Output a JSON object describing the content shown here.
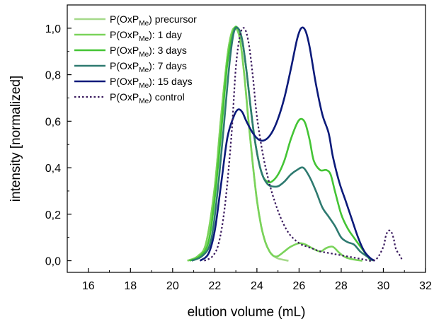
{
  "chart_data": {
    "type": "line",
    "xlabel": "elution volume (mL)",
    "ylabel": "intensity  [normalized]",
    "xlim": [
      15,
      32
    ],
    "ylim": [
      -0.05,
      1.1
    ],
    "x_ticks": [
      16,
      18,
      20,
      22,
      24,
      26,
      28,
      30,
      32
    ],
    "x_tick_labels": [
      "16",
      "18",
      "20",
      "22",
      "24",
      "26",
      "28",
      "30",
      "32"
    ],
    "y_ticks": [
      0.0,
      0.2,
      0.4,
      0.6,
      0.8,
      1.0
    ],
    "y_tick_labels": [
      "0,0",
      "0,2",
      "0,4",
      "0,6",
      "0,8",
      "1,0"
    ],
    "legend_position": "top-left",
    "series": [
      {
        "name": "P(OxP_Me) precursor",
        "legend": {
          "pre": "P(OxP",
          "sub": "Me",
          "post": ") precursor"
        },
        "color": "#a5d98a",
        "style": "solid",
        "x": [
          20.7,
          21.2,
          21.6,
          22.0,
          22.3,
          22.6,
          22.8,
          23.0,
          23.2,
          23.4,
          23.6,
          23.8,
          24.0,
          24.2,
          24.4,
          24.6,
          24.8,
          25.0,
          25.2,
          25.5
        ],
        "y": [
          0.0,
          0.02,
          0.08,
          0.32,
          0.62,
          0.88,
          0.98,
          1.0,
          0.95,
          0.8,
          0.6,
          0.42,
          0.26,
          0.15,
          0.08,
          0.04,
          0.02,
          0.01,
          0.005,
          0.0
        ]
      },
      {
        "name": "P(OxP_Me): 1 day",
        "legend": {
          "pre": "P(OxP",
          "sub": "Me",
          "post": "): 1 day"
        },
        "color": "#7ad35a",
        "style": "solid",
        "x": [
          20.7,
          21.2,
          21.6,
          22.0,
          22.3,
          22.6,
          22.8,
          23.0,
          23.2,
          23.4,
          23.6,
          23.8,
          24.0,
          24.2,
          24.4,
          24.6,
          24.8,
          25.0,
          25.3,
          25.6,
          26.0,
          26.3,
          26.6,
          27.0,
          27.3,
          27.6,
          27.9,
          28.2,
          28.6,
          29.0
        ],
        "y": [
          0.0,
          0.02,
          0.08,
          0.32,
          0.62,
          0.88,
          0.98,
          1.0,
          0.95,
          0.8,
          0.6,
          0.42,
          0.26,
          0.15,
          0.08,
          0.04,
          0.02,
          0.02,
          0.04,
          0.06,
          0.075,
          0.07,
          0.055,
          0.04,
          0.055,
          0.06,
          0.035,
          0.015,
          0.005,
          0.0
        ]
      },
      {
        "name": "P(OxP_Me): 3 days",
        "legend": {
          "pre": "P(OxP",
          "sub": "Me",
          "post": "): 3 days"
        },
        "color": "#44c435",
        "style": "solid",
        "x": [
          20.8,
          21.3,
          21.7,
          22.0,
          22.3,
          22.6,
          22.9,
          23.1,
          23.3,
          23.5,
          23.7,
          23.9,
          24.1,
          24.3,
          24.5,
          24.7,
          25.0,
          25.3,
          25.6,
          25.9,
          26.1,
          26.3,
          26.5,
          26.7,
          27.0,
          27.3,
          27.5,
          27.7,
          28.0,
          28.3,
          28.6,
          29.0,
          29.4
        ],
        "y": [
          0.0,
          0.02,
          0.08,
          0.27,
          0.55,
          0.85,
          0.99,
          1.0,
          0.95,
          0.82,
          0.66,
          0.52,
          0.42,
          0.36,
          0.34,
          0.34,
          0.37,
          0.43,
          0.52,
          0.59,
          0.61,
          0.59,
          0.52,
          0.43,
          0.39,
          0.39,
          0.37,
          0.3,
          0.2,
          0.14,
          0.1,
          0.05,
          0.0
        ]
      },
      {
        "name": "P(OxP_Me): 7 days",
        "legend": {
          "pre": "P(OxP",
          "sub": "Me",
          "post": "): 7 days"
        },
        "color": "#2e7a70",
        "style": "solid",
        "x": [
          20.9,
          21.4,
          21.8,
          22.1,
          22.4,
          22.7,
          22.9,
          23.1,
          23.3,
          23.5,
          23.7,
          23.9,
          24.1,
          24.3,
          24.5,
          24.7,
          25.0,
          25.3,
          25.6,
          25.9,
          26.2,
          26.5,
          26.8,
          27.1,
          27.4,
          27.7,
          28.0,
          28.3,
          28.6,
          28.9,
          29.2,
          29.5
        ],
        "y": [
          0.0,
          0.02,
          0.08,
          0.27,
          0.55,
          0.85,
          0.98,
          1.0,
          0.95,
          0.82,
          0.66,
          0.52,
          0.42,
          0.36,
          0.33,
          0.32,
          0.32,
          0.34,
          0.37,
          0.39,
          0.4,
          0.36,
          0.3,
          0.23,
          0.19,
          0.15,
          0.1,
          0.08,
          0.07,
          0.04,
          0.02,
          0.0
        ]
      },
      {
        "name": "P(OxP_Me): 15 days",
        "legend": {
          "pre": "P(OxP",
          "sub": "Me",
          "post": "): 15 days"
        },
        "color": "#0b1a7a",
        "style": "solid",
        "x": [
          21.3,
          21.7,
          22.0,
          22.3,
          22.6,
          22.9,
          23.1,
          23.3,
          23.5,
          23.8,
          24.1,
          24.4,
          24.7,
          25.0,
          25.3,
          25.6,
          25.9,
          26.1,
          26.3,
          26.5,
          26.8,
          27.1,
          27.4,
          27.6,
          27.9,
          28.2,
          28.5,
          28.8,
          29.1,
          29.4,
          29.6
        ],
        "y": [
          0.0,
          0.03,
          0.13,
          0.33,
          0.53,
          0.62,
          0.65,
          0.64,
          0.6,
          0.55,
          0.52,
          0.52,
          0.55,
          0.61,
          0.7,
          0.82,
          0.95,
          1.0,
          0.99,
          0.92,
          0.76,
          0.63,
          0.55,
          0.45,
          0.34,
          0.26,
          0.18,
          0.1,
          0.04,
          0.01,
          0.0
        ]
      },
      {
        "name": "P(OxP_Me) control",
        "legend": {
          "pre": "P(OxP",
          "sub": "Me",
          "post": ") control"
        },
        "color": "#3a1a5e",
        "style": "dotted",
        "x": [
          21.5,
          21.9,
          22.2,
          22.5,
          22.8,
          23.0,
          23.2,
          23.4,
          23.6,
          23.8,
          24.0,
          24.3,
          24.6,
          24.9,
          25.2,
          25.5,
          25.8,
          26.1,
          26.4,
          26.7,
          27.0,
          27.3,
          27.6,
          27.9,
          28.2,
          28.5,
          28.8,
          29.1,
          29.4,
          29.7,
          30.0,
          30.1,
          30.2,
          30.3,
          30.4,
          30.5,
          30.6,
          30.8,
          30.9
        ],
        "y": [
          0.0,
          0.02,
          0.08,
          0.25,
          0.55,
          0.83,
          0.97,
          1.0,
          0.94,
          0.8,
          0.62,
          0.45,
          0.33,
          0.24,
          0.17,
          0.12,
          0.09,
          0.07,
          0.06,
          0.05,
          0.04,
          0.035,
          0.03,
          0.025,
          0.02,
          0.015,
          0.01,
          0.005,
          0.0,
          0.01,
          0.06,
          0.1,
          0.125,
          0.13,
          0.12,
          0.09,
          0.05,
          0.02,
          0.0
        ]
      }
    ]
  }
}
